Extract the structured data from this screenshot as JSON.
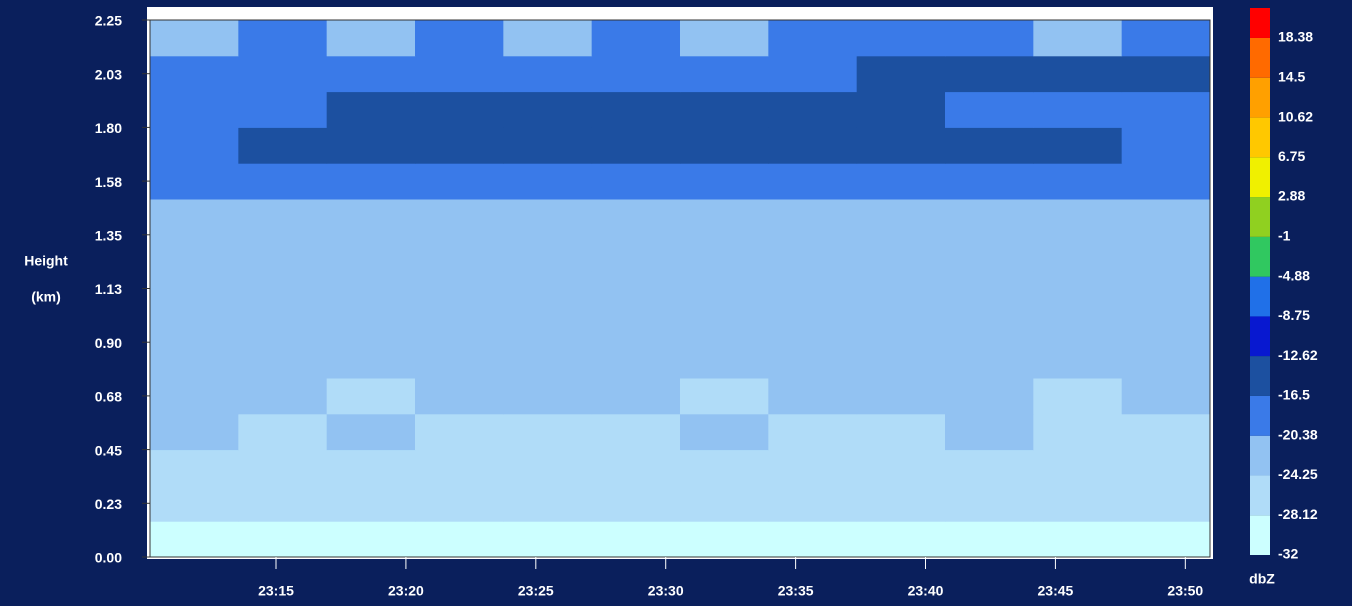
{
  "chart_data": {
    "type": "heatmap",
    "ylabel_lines": [
      "Height",
      "(km)"
    ],
    "colorbar_label": "dbZ",
    "xlim": [
      1390.15,
      1430.95
    ],
    "xticks": [
      {
        "value": 1395,
        "label": "23:15"
      },
      {
        "value": 1400,
        "label": "23:20"
      },
      {
        "value": 1405,
        "label": "23:25"
      },
      {
        "value": 1410,
        "label": "23:30"
      },
      {
        "value": 1415,
        "label": "23:35"
      },
      {
        "value": 1420,
        "label": "23:40"
      },
      {
        "value": 1425,
        "label": "23:45"
      },
      {
        "value": 1430,
        "label": "23:50"
      }
    ],
    "ylim": [
      0,
      2.25
    ],
    "yticks": [
      {
        "value": 0,
        "label": "0.00"
      },
      {
        "value": 0.225,
        "label": "0.23"
      },
      0.45,
      {
        "value": 0.675,
        "label": "0.68"
      },
      {
        "value": 0.9,
        "label": "0.90"
      },
      {
        "value": 1.125,
        "label": "1.13"
      },
      1.35,
      {
        "value": 1.575,
        "label": "1.58"
      },
      {
        "value": 1.8,
        "label": "1.80"
      },
      {
        "value": 2.025,
        "label": "2.03"
      },
      2.25
    ],
    "clim": [
      -32,
      21.3
    ],
    "color_levels": [
      -32,
      -28.12,
      -24.25,
      -20.38,
      -16.5,
      -12.62,
      -8.75,
      -4.88,
      -1,
      2.88,
      6.75,
      10.62,
      14.5,
      18.38
    ],
    "colors": [
      "#ccffff",
      "#b0dcf8",
      "#92c2f2",
      "#3a7ae8",
      "#1c50a0",
      "#0818d0",
      "#2070e8",
      "#30c860",
      "#90d020",
      "#f0f000",
      "#ffc800",
      "#ffa000",
      "#ff6a00",
      "#ff0000"
    ],
    "x_edges": [
      1390.15,
      1393.55,
      1396.95,
      1400.35,
      1403.75,
      1407.15,
      1410.55,
      1413.95,
      1417.35,
      1420.75,
      1424.15,
      1427.55,
      1430.95
    ],
    "y_edges": [
      0,
      0.15,
      0.3,
      0.45,
      0.6,
      0.75,
      0.9,
      1.05,
      1.2,
      1.35,
      1.5,
      1.65,
      1.8,
      1.95,
      2.1,
      2.25
    ],
    "values": [
      [
        -29,
        -29,
        -30,
        -29,
        -29,
        -30,
        -29,
        -29,
        -30,
        -29,
        -29,
        -30
      ],
      [
        -26,
        -25,
        -26,
        -25,
        -26,
        -26,
        -25,
        -26,
        -25,
        -26,
        -25,
        -26
      ],
      [
        -25,
        -26,
        -25,
        -26,
        -25,
        -25,
        -26,
        -25,
        -26,
        -25,
        -26,
        -25
      ],
      [
        -23,
        -25,
        -24,
        -25,
        -26,
        -25,
        -24,
        -26,
        -25,
        -24,
        -25,
        -25
      ],
      [
        -24,
        -23,
        -25,
        -24,
        -23,
        -24,
        -25,
        -24,
        -23,
        -24,
        -25,
        -24
      ],
      [
        -23,
        -24,
        -23,
        -24,
        -23,
        -22,
        -24,
        -23,
        -24,
        -22,
        -23,
        -24
      ],
      [
        -22,
        -23,
        -22,
        -23,
        -22,
        -23,
        -22,
        -23,
        -22,
        -23,
        -22,
        -23
      ],
      [
        -22,
        -22,
        -23,
        -22,
        -22,
        -22,
        -23,
        -22,
        -22,
        -22,
        -23,
        -22
      ],
      [
        -22,
        -21,
        -22,
        -22,
        -21,
        -22,
        -22,
        -21,
        -22,
        -22,
        -21,
        -22
      ],
      [
        -21,
        -22,
        -21,
        -22,
        -21,
        -22,
        -22,
        -21,
        -22,
        -22,
        -21,
        -21
      ],
      [
        -18,
        -19,
        -18,
        -18,
        -19,
        -18,
        -18,
        -19,
        -18,
        -18,
        -19,
        -18
      ],
      [
        -17,
        -15,
        -16,
        -14,
        -15,
        -16,
        -15,
        -14,
        -15,
        -16,
        -15,
        -17
      ],
      [
        -18,
        -17,
        -16,
        -15,
        -14,
        -15,
        -14,
        -15,
        -16,
        -17,
        -17,
        -18
      ],
      [
        -18,
        -19,
        -17,
        -18,
        -17,
        -18,
        -19,
        -17,
        -15,
        -15,
        -14,
        -14
      ],
      [
        -21,
        -19,
        -22,
        -18,
        -21,
        -19,
        -22,
        -20,
        -19,
        -19,
        -21,
        -19
      ]
    ]
  }
}
